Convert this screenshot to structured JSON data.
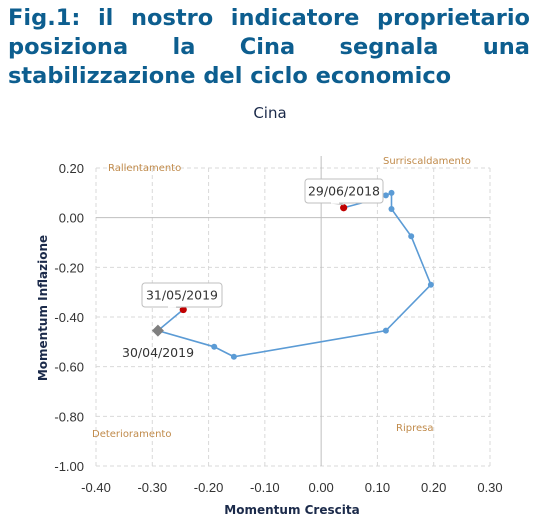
{
  "figure_title": "Fig.1: il nostro indicatore proprietario posiziona la Cina segnala una stabilizzazione del ciclo economico",
  "chart_data": {
    "type": "scatter",
    "title": "Cina",
    "xlabel": "Momentum Crescita",
    "ylabel": "Momentum Inflazione",
    "xlim": [
      -0.4,
      0.3
    ],
    "ylim": [
      -1.0,
      0.2
    ],
    "x_ticks": [
      "-0.40",
      "-0.30",
      "-0.20",
      "-0.10",
      "0.00",
      "0.10",
      "0.20",
      "0.30"
    ],
    "y_ticks": [
      "-1.00",
      "-0.80",
      "-0.60",
      "-0.40",
      "-0.20",
      "0.00",
      "0.20"
    ],
    "grid": true,
    "line_color": "#5b9bd5",
    "series": [
      {
        "values": [
          {
            "x": 0.04,
            "y": 0.04
          },
          {
            "x": 0.09,
            "y": 0.07
          },
          {
            "x": 0.115,
            "y": 0.09
          },
          {
            "x": 0.125,
            "y": 0.1
          },
          {
            "x": 0.125,
            "y": 0.035
          },
          {
            "x": 0.16,
            "y": -0.075
          },
          {
            "x": 0.195,
            "y": -0.27
          },
          {
            "x": 0.115,
            "y": -0.455
          },
          {
            "x": -0.155,
            "y": -0.56
          },
          {
            "x": -0.19,
            "y": -0.52
          },
          {
            "x": -0.29,
            "y": -0.455
          },
          {
            "x": -0.245,
            "y": -0.37
          }
        ]
      }
    ],
    "highlight_points": [
      {
        "x": 0.04,
        "y": 0.04,
        "color": "#c00000"
      },
      {
        "x": -0.245,
        "y": -0.37,
        "color": "#c00000"
      },
      {
        "x": -0.29,
        "y": -0.455,
        "color": "#7f7f7f",
        "marker": "diamond"
      }
    ],
    "quadrant_labels": {
      "top_left": "Rallentamento",
      "top_right": "Surriscaldamento",
      "bottom_left": "Deterioramento",
      "bottom_right": "Ripresa"
    },
    "annotations": {
      "latest": "29/06/2018",
      "recent": "31/05/2019",
      "previous": "30/04/2019"
    }
  }
}
